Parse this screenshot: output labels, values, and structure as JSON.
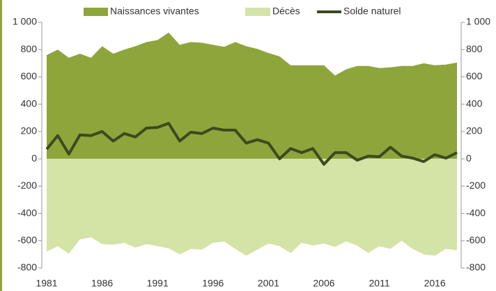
{
  "chart_data": {
    "type": "area-line",
    "x": [
      1981,
      1982,
      1983,
      1984,
      1985,
      1986,
      1987,
      1988,
      1989,
      1990,
      1991,
      1992,
      1993,
      1994,
      1995,
      1996,
      1997,
      1998,
      1999,
      2000,
      2001,
      2002,
      2003,
      2004,
      2005,
      2006,
      2007,
      2008,
      2009,
      2010,
      2011,
      2012,
      2013,
      2014,
      2015,
      2016,
      2017,
      2018
    ],
    "xlim": [
      1981,
      2018
    ],
    "xticks": [
      1981,
      1986,
      1991,
      1996,
      2001,
      2006,
      2011,
      2016
    ],
    "series": [
      {
        "name": "Naissances vivantes",
        "color": "#8ea53b",
        "kind": "area",
        "values": [
          760,
          800,
          740,
          770,
          740,
          825,
          770,
          800,
          825,
          855,
          870,
          925,
          835,
          855,
          850,
          835,
          820,
          855,
          825,
          805,
          775,
          750,
          685,
          685,
          685,
          685,
          610,
          655,
          680,
          680,
          665,
          670,
          680,
          680,
          700,
          685,
          690,
          705
        ]
      },
      {
        "name": "Décès",
        "color": "#d4e3a6",
        "kind": "area",
        "values": [
          -680,
          -640,
          -695,
          -590,
          -575,
          -625,
          -630,
          -615,
          -650,
          -625,
          -640,
          -655,
          -700,
          -660,
          -665,
          -615,
          -605,
          -660,
          -710,
          -665,
          -620,
          -640,
          -690,
          -615,
          -635,
          -620,
          -645,
          -605,
          -635,
          -690,
          -640,
          -660,
          -600,
          -660,
          -700,
          -710,
          -660,
          -670
        ]
      },
      {
        "name": "Solde naturel",
        "color": "#3b4a1f",
        "kind": "line",
        "values": [
          70,
          170,
          35,
          175,
          170,
          200,
          130,
          185,
          160,
          225,
          230,
          260,
          130,
          195,
          185,
          225,
          210,
          210,
          115,
          140,
          115,
          0,
          75,
          45,
          75,
          -40,
          45,
          45,
          -10,
          20,
          15,
          85,
          20,
          5,
          -20,
          30,
          5,
          45
        ]
      }
    ],
    "ylim": [
      -800,
      1000
    ],
    "yticks": [
      -800,
      -600,
      -400,
      -200,
      0,
      200,
      400,
      600,
      800,
      {
        "value": 1000,
        "label": "1 000"
      }
    ],
    "y2lim": [
      -800,
      1000
    ],
    "y2ticks": [
      -800,
      -600,
      -400,
      -200,
      0,
      200,
      400,
      600,
      800,
      {
        "value": 1000,
        "label": "1 000"
      }
    ]
  }
}
